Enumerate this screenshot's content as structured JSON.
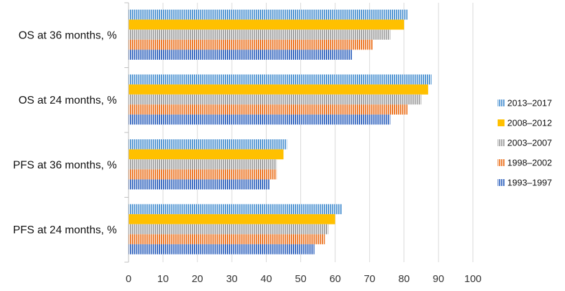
{
  "chart_data": {
    "type": "bar",
    "orientation": "horizontal",
    "categories": [
      "OS at 36 months, %",
      "OS at 24 months, %",
      "PFS at 36 months, %",
      "PFS at 24 months, %"
    ],
    "series": [
      {
        "name": "2013–2017",
        "color": "#5b9bd5",
        "pattern": "vertical-stripes",
        "values": [
          81,
          88,
          46,
          62
        ]
      },
      {
        "name": "2008–2012",
        "color": "#ffc000",
        "pattern": "solid",
        "values": [
          80,
          87,
          45,
          60
        ]
      },
      {
        "name": "2003–2007",
        "color": "#a5a5a5",
        "pattern": "vertical-stripes",
        "values": [
          76,
          85,
          43,
          58
        ]
      },
      {
        "name": "1998–2002",
        "color": "#ed7d31",
        "pattern": "vertical-stripes",
        "values": [
          71,
          81,
          43,
          57
        ]
      },
      {
        "name": "1993–1997",
        "color": "#4472c4",
        "pattern": "vertical-stripes",
        "values": [
          65,
          76,
          41,
          54
        ]
      }
    ],
    "xlim": [
      0,
      100
    ],
    "xticks": [
      0,
      10,
      20,
      30,
      40,
      50,
      60,
      70,
      80,
      90,
      100
    ],
    "grid": true,
    "legend_position": "right",
    "title": "",
    "xlabel": "",
    "ylabel": ""
  }
}
